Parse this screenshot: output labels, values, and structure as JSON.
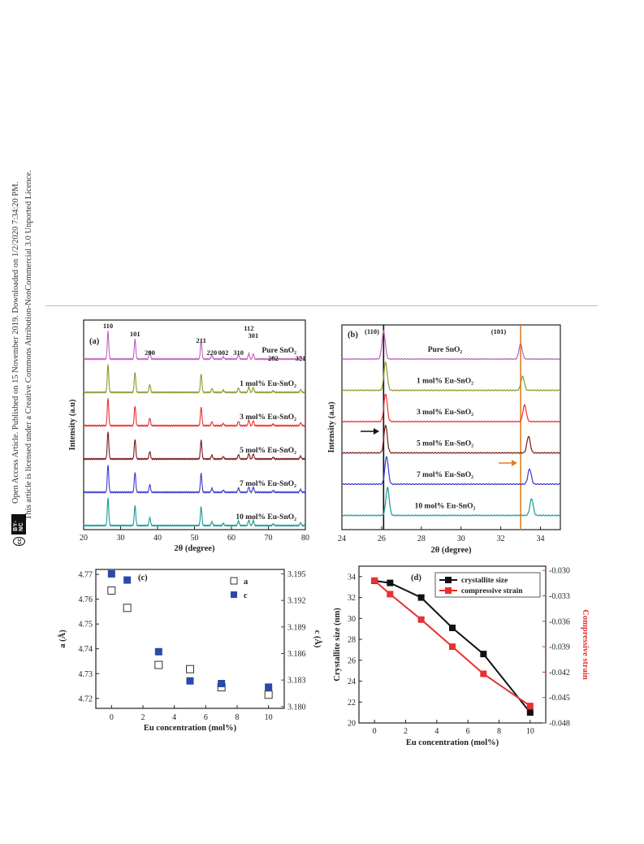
{
  "side": {
    "line1": "Open Access Article. Published on 15 November 2019. Downloaded on 1/2/2020 7:34:20 PM.",
    "line2": "This article is licensed under a Creative Commons Attribution-NonCommercial 3.0 Unported Licence.",
    "cc_icon": "cc",
    "cc_text": "BY-NC"
  },
  "chart_data": [
    {
      "panel": "(a)",
      "type": "line",
      "xlabel": "2θ (degree)",
      "ylabel": "Intensity (a.u)",
      "xlim": [
        20,
        80
      ],
      "xticks": [
        "20",
        "30",
        "40",
        "50",
        "60",
        "70",
        "80"
      ],
      "peak_labels": [
        {
          "label": "110",
          "x": 26.6
        },
        {
          "label": "101",
          "x": 33.9
        },
        {
          "label": "200",
          "x": 37.9
        },
        {
          "label": "211",
          "x": 51.8
        },
        {
          "label": "220",
          "x": 54.7
        },
        {
          "label": "002",
          "x": 57.8
        },
        {
          "label": "310",
          "x": 61.9
        },
        {
          "label": "112",
          "x": 64.7
        },
        {
          "label": "301",
          "x": 65.9
        },
        {
          "label": "202",
          "x": 71.3
        },
        {
          "label": "321",
          "x": 78.7
        }
      ],
      "peaks": [
        {
          "x": 26.6,
          "h": 1.0
        },
        {
          "x": 33.9,
          "h": 0.72
        },
        {
          "x": 37.9,
          "h": 0.28
        },
        {
          "x": 51.8,
          "h": 0.68
        },
        {
          "x": 54.7,
          "h": 0.14
        },
        {
          "x": 57.8,
          "h": 0.08
        },
        {
          "x": 61.9,
          "h": 0.16
        },
        {
          "x": 64.7,
          "h": 0.2
        },
        {
          "x": 65.9,
          "h": 0.18
        },
        {
          "x": 71.3,
          "h": 0.06
        },
        {
          "x": 78.7,
          "h": 0.1
        }
      ],
      "series": [
        {
          "name": "Pure SnO₂",
          "color": "#c060c0"
        },
        {
          "name": "1 mol% Eu-SnO₂",
          "color": "#8a9a2a"
        },
        {
          "name": "3 mol% Eu-SnO₂",
          "color": "#ee3030"
        },
        {
          "name": "5 mol% Eu-SnO₂",
          "color": "#7a1a1a"
        },
        {
          "name": "7 mol% Eu-SnO₂",
          "color": "#3a3ad0"
        },
        {
          "name": "10 mol% Eu-SnO₂",
          "color": "#1a9a9a"
        }
      ]
    },
    {
      "panel": "(b)",
      "type": "line",
      "xlabel": "2θ (degree)",
      "ylabel": "Intensity (a.u)",
      "xlim": [
        24,
        35
      ],
      "xticks": [
        "24",
        "26",
        "28",
        "30",
        "32",
        "34"
      ],
      "peak_labels": [
        {
          "label": "(110)",
          "x": 26.0
        },
        {
          "label": "(101)",
          "x": 33.1
        }
      ],
      "reference_lines": [
        {
          "x": 26.1,
          "color": "#111111"
        },
        {
          "x": 33.0,
          "color": "#e08020"
        }
      ],
      "series": [
        {
          "name": "Pure SnO₂",
          "color": "#c060c0",
          "p110": 26.1,
          "p101": 33.0,
          "h101": 0.55
        },
        {
          "name": "1 mol% Eu-SnO₂",
          "color": "#8a9a2a",
          "p110": 26.2,
          "p101": 33.1,
          "h101": 0.5
        },
        {
          "name": "3 mol% Eu-SnO₂",
          "color": "#ee3030",
          "p110": 26.2,
          "p101": 33.2,
          "h101": 0.6
        },
        {
          "name": "5 mol% Eu-SnO₂",
          "color": "#7a1a1a",
          "p110": 26.2,
          "p101": 33.4,
          "h101": 0.6
        },
        {
          "name": "7 mol% Eu-SnO₂",
          "color": "#3a3ad0",
          "p110": 26.25,
          "p101": 33.45,
          "h101": 0.55
        },
        {
          "name": "10 mol% Eu-SnO₂",
          "color": "#1a9a9a",
          "p110": 26.3,
          "p101": 33.55,
          "h101": 0.6
        }
      ]
    },
    {
      "panel": "(c)",
      "type": "scatter",
      "xlabel": "Eu concentration (mol%)",
      "ylabel": "a (Å)",
      "y2label": "c (Å)",
      "xlim": [
        -1,
        11
      ],
      "ylim": [
        4.716,
        4.772
      ],
      "y2lim": [
        3.1798,
        3.1955
      ],
      "xticks": [
        "0",
        "2",
        "4",
        "6",
        "8",
        "10"
      ],
      "yticks": [
        "4.72",
        "4.73",
        "4.74",
        "4.75",
        "4.76",
        "4.77"
      ],
      "y2ticks": [
        "3.180",
        "3.183",
        "3.186",
        "3.189",
        "3.192",
        "3.195"
      ],
      "series": [
        {
          "name": "a",
          "axis": "left",
          "marker": "open-square",
          "color": "#333333",
          "x": [
            0,
            1,
            3,
            5,
            7,
            10
          ],
          "y": [
            4.7635,
            4.7565,
            4.7335,
            4.7318,
            4.7245,
            4.7215
          ]
        },
        {
          "name": "c",
          "axis": "right",
          "marker": "filled-square",
          "color": "#2a4aa8",
          "x": [
            0,
            1,
            3,
            5,
            7,
            10
          ],
          "y": [
            3.195,
            3.1943,
            3.1862,
            3.1829,
            3.1826,
            3.1822
          ]
        }
      ]
    },
    {
      "panel": "(d)",
      "type": "line",
      "xlabel": "Eu concentration (mol%)",
      "ylabel": "Crystallite size (nm)",
      "y2label": "Compressive strain",
      "xlim": [
        -1,
        11
      ],
      "ylim": [
        20,
        35
      ],
      "y2lim": [
        -0.048,
        -0.0295
      ],
      "xticks": [
        "0",
        "2",
        "4",
        "6",
        "8",
        "10"
      ],
      "yticks": [
        "20",
        "22",
        "24",
        "26",
        "28",
        "30",
        "32",
        "34"
      ],
      "y2ticks": [
        "-0.030",
        "-0.033",
        "-0.036",
        "-0.039",
        "-0.042",
        "-0.045",
        "-0.048"
      ],
      "series": [
        {
          "name": "crystallite size",
          "axis": "left",
          "color": "#111111",
          "x": [
            0,
            1,
            3,
            5,
            7,
            10
          ],
          "y": [
            33.6,
            33.4,
            32.0,
            29.1,
            26.6,
            21.0
          ]
        },
        {
          "name": "compressive strain",
          "axis": "right",
          "color": "#e83030",
          "x": [
            0,
            1,
            3,
            5,
            7,
            10
          ],
          "y": [
            -0.0312,
            -0.0328,
            -0.0358,
            -0.039,
            -0.0422,
            -0.046
          ]
        }
      ]
    }
  ]
}
